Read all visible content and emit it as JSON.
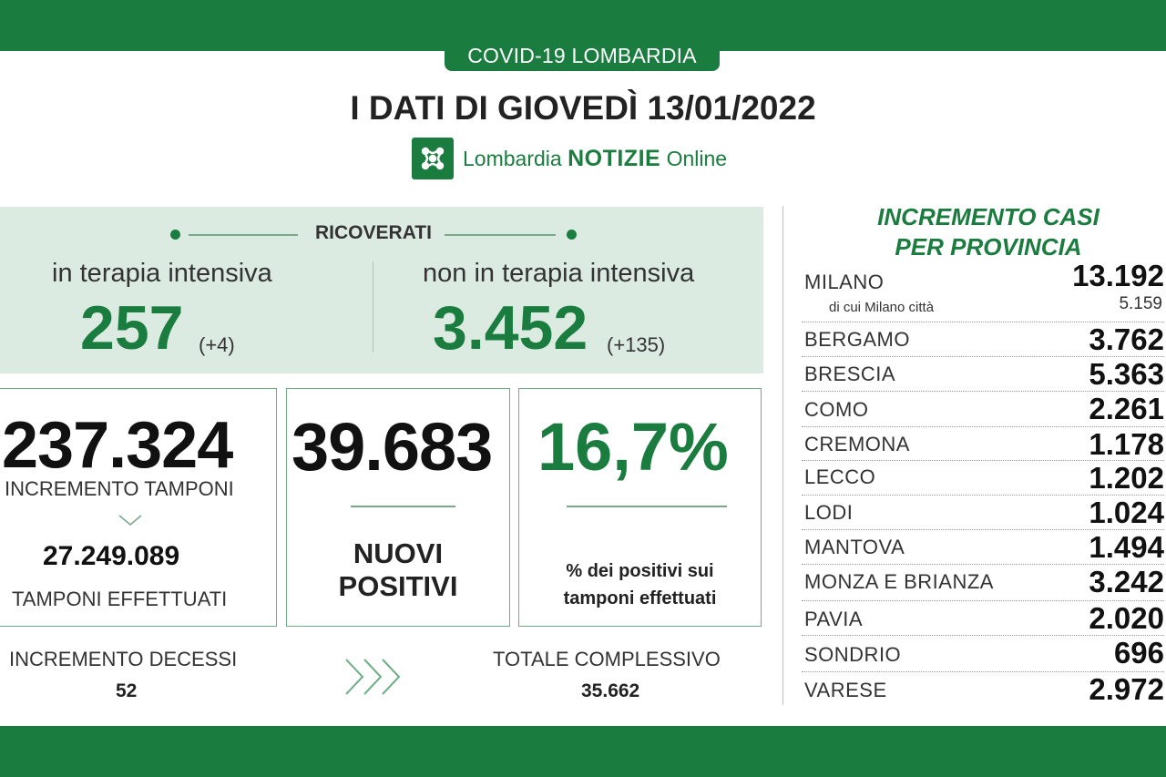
{
  "header": {
    "tag": "COVID-19 LOMBARDIA",
    "title": "I DATI DI GIOVEDÌ 13/01/2022",
    "brand_name": "Lombardia",
    "brand_strong": "NOTIZIE",
    "brand_suffix": "Online",
    "brand_icon": "lombardia-rose-logo"
  },
  "ricoverati": {
    "label": "RICOVERATI",
    "intensive": {
      "label": "in terapia intensiva",
      "value": "257",
      "delta": "(+4)"
    },
    "non_intensive": {
      "label": "non in terapia intensiva",
      "value": "3.452",
      "delta": "(+135)"
    }
  },
  "tamponi": {
    "increment_value": "237.324",
    "increment_label": "INCREMENTO TAMPONI",
    "total_value": "27.249.089",
    "total_label": "TAMPONI EFFETTUATI"
  },
  "positivi": {
    "value": "39.683",
    "label_line1": "NUOVI",
    "label_line2": "POSITIVI"
  },
  "percentuale": {
    "value": "16,7%",
    "label_line1": "% dei positivi sui",
    "label_line2": "tamponi effettuati"
  },
  "decessi": {
    "label": "INCREMENTO DECESSI",
    "value": "52",
    "total_label": "TOTALE COMPLESSIVO",
    "total_value": "35.662"
  },
  "province": {
    "title_line1": "INCREMENTO CASI",
    "title_line2": "PER PROVINCIA",
    "items": [
      {
        "name": "MILANO",
        "value": "13.192",
        "sub_name": "di cui Milano città",
        "sub_value": "5.159"
      },
      {
        "name": "BERGAMO",
        "value": "3.762"
      },
      {
        "name": "BRESCIA",
        "value": "5.363"
      },
      {
        "name": "COMO",
        "value": "2.261"
      },
      {
        "name": "CREMONA",
        "value": "1.178"
      },
      {
        "name": "LECCO",
        "value": "1.202"
      },
      {
        "name": "LODI",
        "value": "1.024"
      },
      {
        "name": "MANTOVA",
        "value": "1.494"
      },
      {
        "name": "MONZA E BRIANZA",
        "value": "3.242"
      },
      {
        "name": "PAVIA",
        "value": "2.020"
      },
      {
        "name": "SONDRIO",
        "value": "696"
      },
      {
        "name": "VARESE",
        "value": "2.972"
      }
    ]
  },
  "colors": {
    "brand_green": "#1a7c3e",
    "panel_green": "#dcebe1"
  }
}
